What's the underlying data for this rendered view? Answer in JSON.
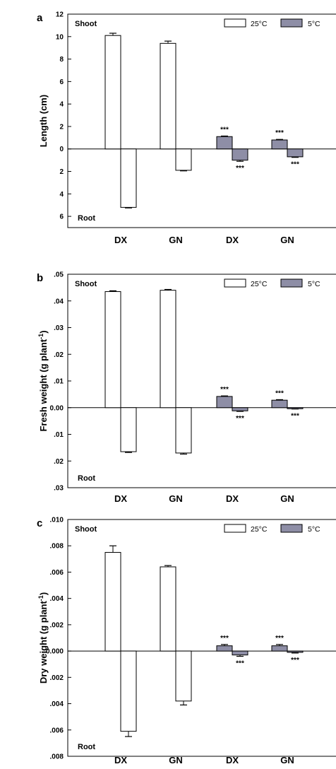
{
  "colors": {
    "warm": "#ffffff",
    "cold": "#8e8ea6",
    "axis": "#000000"
  },
  "chart_data": [
    {
      "panel": "a",
      "type": "bar",
      "ylabel": "Length (cm)",
      "top_label": "Shoot",
      "bottom_label": "Root",
      "categories": [
        "DX",
        "GN",
        "DX",
        "GN"
      ],
      "series": [
        {
          "name": "25°C"
        },
        {
          "name": "5°C"
        }
      ],
      "ylim": [
        -7,
        12
      ],
      "ytick_values": [
        12,
        10,
        8,
        6,
        4,
        2,
        0,
        -2,
        -4,
        -6
      ],
      "ytick_labels": [
        "12",
        "10",
        "8",
        "6",
        "4",
        "2",
        "0",
        "2",
        "4",
        "6"
      ],
      "bars": [
        {
          "category": 0,
          "series": 0,
          "shoot": 10.1,
          "shoot_err": 0.2,
          "root": 5.2,
          "root_err": 0.05,
          "stars_shoot": "",
          "stars_root": ""
        },
        {
          "category": 1,
          "series": 0,
          "shoot": 9.4,
          "shoot_err": 0.2,
          "root": 1.9,
          "root_err": 0.05,
          "stars_shoot": "",
          "stars_root": ""
        },
        {
          "category": 2,
          "series": 1,
          "shoot": 1.1,
          "shoot_err": 0.05,
          "root": 1.0,
          "root_err": 0.1,
          "stars_shoot": "***",
          "stars_root": "***"
        },
        {
          "category": 3,
          "series": 1,
          "shoot": 0.8,
          "shoot_err": 0.05,
          "root": 0.7,
          "root_err": 0.05,
          "stars_shoot": "***",
          "stars_root": "***"
        }
      ]
    },
    {
      "panel": "b",
      "type": "bar",
      "ylabel": "Fresh weight (g plant-1)",
      "ylabel_main": "Fresh weight (g plant",
      "ylabel_sup": "-1",
      "ylabel_end": ")",
      "top_label": "Shoot",
      "bottom_label": "Root",
      "categories": [
        "DX",
        "GN",
        "DX",
        "GN"
      ],
      "series": [
        {
          "name": "25°C"
        },
        {
          "name": "5°C"
        }
      ],
      "ylim": [
        -0.03,
        0.05
      ],
      "ytick_values": [
        0.05,
        0.04,
        0.03,
        0.02,
        0.01,
        0,
        -0.01,
        -0.02,
        -0.03
      ],
      "ytick_labels": [
        ".05",
        ".04",
        ".03",
        ".02",
        ".01",
        "0.00",
        ".01",
        ".02",
        ".03"
      ],
      "bars": [
        {
          "category": 0,
          "series": 0,
          "shoot": 0.0435,
          "shoot_err": 0.0003,
          "root": 0.0165,
          "root_err": 0.0003,
          "stars_shoot": "",
          "stars_root": ""
        },
        {
          "category": 1,
          "series": 0,
          "shoot": 0.044,
          "shoot_err": 0.0003,
          "root": 0.017,
          "root_err": 0.0004,
          "stars_shoot": "",
          "stars_root": ""
        },
        {
          "category": 2,
          "series": 1,
          "shoot": 0.0042,
          "shoot_err": 0.0002,
          "root": 0.0012,
          "root_err": 0.0002,
          "stars_shoot": "***",
          "stars_root": "***"
        },
        {
          "category": 3,
          "series": 1,
          "shoot": 0.0028,
          "shoot_err": 0.0002,
          "root": 0.0004,
          "root_err": 0.0001,
          "stars_shoot": "***",
          "stars_root": "***"
        }
      ]
    },
    {
      "panel": "c",
      "type": "bar",
      "ylabel": "Dry weight (g plant-1)",
      "ylabel_main": "Dry weight (g plant",
      "ylabel_sup": "-1",
      "ylabel_end": ")",
      "top_label": "Shoot",
      "bottom_label": "Root",
      "categories": [
        "DX",
        "GN",
        "DX",
        "GN"
      ],
      "series": [
        {
          "name": "25°C"
        },
        {
          "name": "5°C"
        }
      ],
      "ylim": [
        -0.008,
        0.01
      ],
      "ytick_values": [
        0.01,
        0.008,
        0.006,
        0.004,
        0.002,
        0,
        -0.002,
        -0.004,
        -0.006,
        -0.008
      ],
      "ytick_labels": [
        ".010",
        ".008",
        ".006",
        ".004",
        ".002",
        "0.000",
        ".002",
        ".004",
        ".006",
        ".008"
      ],
      "bars": [
        {
          "category": 0,
          "series": 0,
          "shoot": 0.0075,
          "shoot_err": 0.0005,
          "root": 0.0061,
          "root_err": 0.0004,
          "stars_shoot": "",
          "stars_root": ""
        },
        {
          "category": 1,
          "series": 0,
          "shoot": 0.0064,
          "shoot_err": 0.0001,
          "root": 0.0038,
          "root_err": 0.0003,
          "stars_shoot": "",
          "stars_root": ""
        },
        {
          "category": 2,
          "series": 1,
          "shoot": 0.0004,
          "shoot_err": 0.0001,
          "root": 0.0003,
          "root_err": 0.0001,
          "stars_shoot": "***",
          "stars_root": "***"
        },
        {
          "category": 3,
          "series": 1,
          "shoot": 0.0004,
          "shoot_err": 0.0001,
          "root": 0.0001,
          "root_err": 5e-05,
          "stars_shoot": "***",
          "stars_root": "***"
        }
      ]
    }
  ]
}
